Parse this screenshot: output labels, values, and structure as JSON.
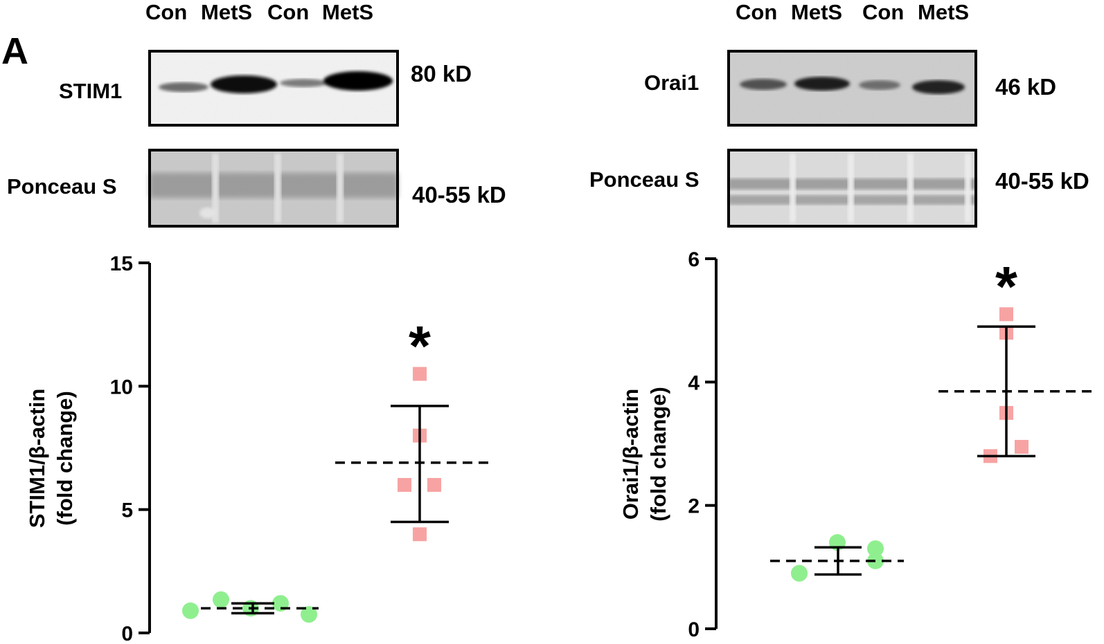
{
  "panel_label": "A",
  "blots": [
    {
      "lanes": [
        "Con",
        "MetS",
        "Con",
        "MetS"
      ],
      "protein": {
        "label": "STIM1",
        "mw": "80 kD"
      },
      "loading": {
        "label": "Ponceau S",
        "mw": "40-55 kD"
      }
    },
    {
      "lanes": [
        "Con",
        "MetS",
        "Con",
        "MetS"
      ],
      "protein": {
        "label": "Orai1",
        "mw": "46 kD"
      },
      "loading": {
        "label": "Ponceau S",
        "mw": "40-55 kD"
      }
    }
  ],
  "chart_data": [
    {
      "type": "scatter",
      "ylabel": [
        "STIM1/β-actin",
        "(fold change)"
      ],
      "ylim": [
        0,
        15
      ],
      "yticks": [
        "0",
        "5",
        "10",
        "15"
      ],
      "series": [
        {
          "points": [
            0.9,
            1.35,
            1.0,
            1.2,
            0.75
          ],
          "mean": 1.0,
          "error": [
            0.8,
            1.2
          ],
          "color": "#8fef8f",
          "marker": "circle"
        },
        {
          "points": [
            10.5,
            8.0,
            6.0,
            6.0,
            4.0
          ],
          "mean": 6.9,
          "error": [
            4.5,
            9.2
          ],
          "color": "#f7a3a3",
          "marker": "square"
        }
      ],
      "annotations": [
        {
          "text": "*",
          "series": 1
        }
      ]
    },
    {
      "type": "scatter",
      "ylabel": [
        "Orai1/β-actin",
        "(fold change)"
      ],
      "ylim": [
        0,
        6
      ],
      "yticks": [
        "0",
        "2",
        "4",
        "6"
      ],
      "series": [
        {
          "points": [
            0.9,
            1.4,
            1.1,
            1.3,
            0.9
          ],
          "mean": 1.1,
          "error": [
            0.88,
            1.32
          ],
          "color": "#8fef8f",
          "marker": "circle"
        },
        {
          "points": [
            5.1,
            4.8,
            3.5,
            2.95,
            2.8
          ],
          "mean": 3.85,
          "error": [
            2.8,
            4.9
          ],
          "color": "#f7a3a3",
          "marker": "square"
        }
      ],
      "annotations": [
        {
          "text": "*",
          "series": 1
        }
      ]
    }
  ]
}
